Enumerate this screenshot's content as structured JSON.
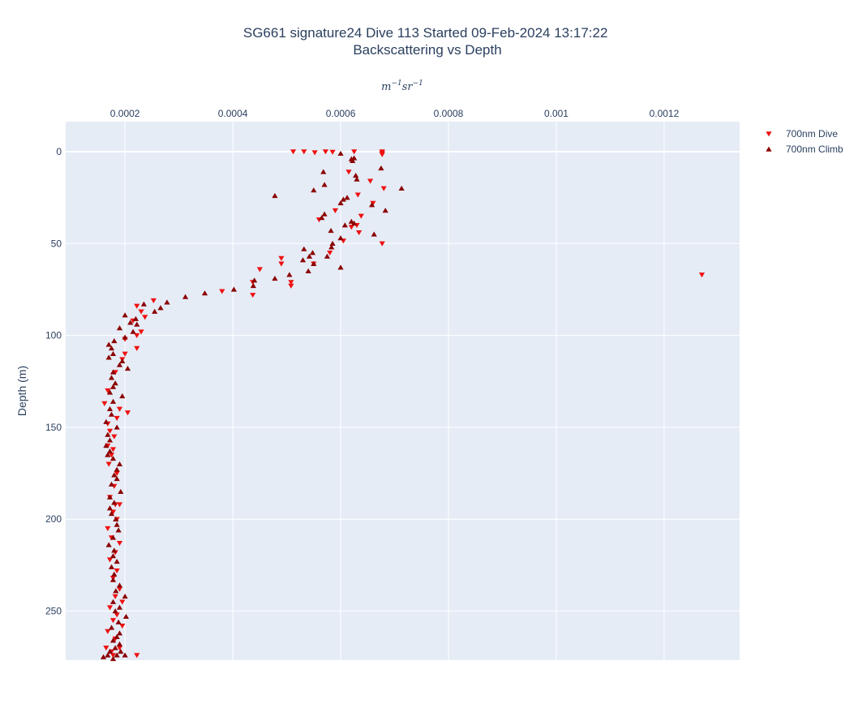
{
  "chart_data": {
    "type": "scatter",
    "title_line1": "SG661 signature24 Dive 113 Started 09-Feb-2024 13:17:22",
    "title_line2": "Backscattering vs Depth",
    "xlabel_unit": {
      "base1": "m",
      "exp1": "−1",
      "base2": "sr",
      "exp2": "−1"
    },
    "ylabel": "Depth (m)",
    "xlim": [
      9e-05,
      0.00134
    ],
    "ylim": [
      0,
      293
    ],
    "y_reversed": true,
    "x_axis_side": "top",
    "grid": true,
    "legend_position": "top-right",
    "x_ticks": [
      {
        "value": 0.0002,
        "label": "0.0002"
      },
      {
        "value": 0.0004,
        "label": "0.0004"
      },
      {
        "value": 0.0006,
        "label": "0.0006"
      },
      {
        "value": 0.0008,
        "label": "0.0008"
      },
      {
        "value": 0.001,
        "label": "0.001"
      },
      {
        "value": 0.0012,
        "label": "0.0012"
      }
    ],
    "y_ticks": [
      {
        "value": 0,
        "label": "0"
      },
      {
        "value": 50,
        "label": "50"
      },
      {
        "value": 100,
        "label": "100"
      },
      {
        "value": 150,
        "label": "150"
      },
      {
        "value": 200,
        "label": "200"
      },
      {
        "value": 250,
        "label": "250"
      }
    ],
    "series": [
      {
        "name": "700nm Dive",
        "color": "#ee1111",
        "marker": "triangle-down",
        "points": [
          [
            0.000512,
            0
          ],
          [
            0.000532,
            0
          ],
          [
            0.000552,
            0.5
          ],
          [
            0.000572,
            0
          ],
          [
            0.000585,
            0.2
          ],
          [
            0.000625,
            0
          ],
          [
            0.000677,
            0
          ],
          [
            0.000677,
            0.8
          ],
          [
            0.000677,
            1.5
          ],
          [
            0.000615,
            11
          ],
          [
            0.000655,
            16
          ],
          [
            0.00068,
            20
          ],
          [
            0.000632,
            23.5
          ],
          [
            0.00066,
            28
          ],
          [
            0.00059,
            32
          ],
          [
            0.000638,
            35
          ],
          [
            0.00063,
            40
          ],
          [
            0.00056,
            37
          ],
          [
            0.00062,
            41
          ],
          [
            0.000634,
            44
          ],
          [
            0.000677,
            50
          ],
          [
            0.00058,
            55
          ],
          [
            0.000605,
            48.5
          ],
          [
            0.00049,
            58
          ],
          [
            0.00049,
            61
          ],
          [
            0.00055,
            61
          ],
          [
            0.00045,
            64
          ],
          [
            0.000508,
            71
          ],
          [
            0.000508,
            73
          ],
          [
            0.000437,
            71
          ],
          [
            0.000437,
            78
          ],
          [
            0.00038,
            76
          ],
          [
            0.00127,
            67
          ],
          [
            0.000253,
            81
          ],
          [
            0.000222,
            84
          ],
          [
            0.00023,
            87
          ],
          [
            0.000237,
            90
          ],
          [
            0.00023,
            98
          ],
          [
            0.000215,
            92
          ],
          [
            0.000222,
            100
          ],
          [
            0.000222,
            107
          ],
          [
            0.0002,
            102
          ],
          [
            0.0002,
            110
          ],
          [
            0.000195,
            113
          ],
          [
            0.000182,
            120
          ],
          [
            0.000168,
            130
          ],
          [
            0.000162,
            137
          ],
          [
            0.00019,
            140
          ],
          [
            0.000205,
            142
          ],
          [
            0.000185,
            145
          ],
          [
            0.000168,
            148
          ],
          [
            0.000172,
            152
          ],
          [
            0.00018,
            155
          ],
          [
            0.000168,
            160
          ],
          [
            0.000178,
            162
          ],
          [
            0.000175,
            165
          ],
          [
            0.00017,
            170
          ],
          [
            0.000185,
            175
          ],
          [
            0.00018,
            182
          ],
          [
            0.000172,
            188
          ],
          [
            0.000182,
            192
          ],
          [
            0.00019,
            192
          ],
          [
            0.000178,
            196
          ],
          [
            0.000185,
            200
          ],
          [
            0.000168,
            205
          ],
          [
            0.000175,
            210
          ],
          [
            0.00019,
            213
          ],
          [
            0.000182,
            218
          ],
          [
            0.000172,
            222
          ],
          [
            0.000185,
            228
          ],
          [
            0.000178,
            232
          ],
          [
            0.00019,
            238
          ],
          [
            0.000182,
            242
          ],
          [
            0.000195,
            245
          ],
          [
            0.000172,
            248
          ],
          [
            0.000185,
            252
          ],
          [
            0.000178,
            255
          ],
          [
            0.000195,
            258
          ],
          [
            0.000168,
            261
          ],
          [
            0.000182,
            265
          ],
          [
            0.00019,
            270
          ],
          [
            0.000175,
            272
          ],
          [
            0.000178,
            274
          ],
          [
            0.000222,
            274
          ],
          [
            0.000165,
            270
          ]
        ]
      },
      {
        "name": "700nm Climb",
        "color": "#8b0000",
        "marker": "triangle-up",
        "points": [
          [
            0.0006,
            1
          ],
          [
            0.000675,
            9
          ],
          [
            0.00062,
            4
          ],
          [
            0.000622,
            5
          ],
          [
            0.000625,
            3.5
          ],
          [
            0.000568,
            11
          ],
          [
            0.000628,
            13
          ],
          [
            0.00063,
            15
          ],
          [
            0.00057,
            18
          ],
          [
            0.000713,
            20
          ],
          [
            0.00055,
            21
          ],
          [
            0.000478,
            24
          ],
          [
            0.000612,
            25
          ],
          [
            0.000605,
            26
          ],
          [
            0.0006,
            28
          ],
          [
            0.000658,
            29
          ],
          [
            0.000683,
            32
          ],
          [
            0.00057,
            34
          ],
          [
            0.000565,
            36
          ],
          [
            0.00062,
            38
          ],
          [
            0.000625,
            39
          ],
          [
            0.000608,
            40
          ],
          [
            0.000582,
            43
          ],
          [
            0.000662,
            45
          ],
          [
            0.0006,
            47
          ],
          [
            0.000585,
            50
          ],
          [
            0.000583,
            52
          ],
          [
            0.000532,
            53
          ],
          [
            0.000548,
            55
          ],
          [
            0.000542,
            57
          ],
          [
            0.000575,
            57
          ],
          [
            0.00053,
            59
          ],
          [
            0.00055,
            61
          ],
          [
            0.0006,
            63
          ],
          [
            0.00054,
            65
          ],
          [
            0.000505,
            67
          ],
          [
            0.000478,
            69
          ],
          [
            0.00044,
            70
          ],
          [
            0.000438,
            73
          ],
          [
            0.000402,
            75
          ],
          [
            0.000348,
            77
          ],
          [
            0.000312,
            79
          ],
          [
            0.000278,
            82
          ],
          [
            0.000235,
            83
          ],
          [
            0.000266,
            85
          ],
          [
            0.000255,
            87
          ],
          [
            0.0002,
            89
          ],
          [
            0.00022,
            91
          ],
          [
            0.00021,
            93
          ],
          [
            0.000222,
            94
          ],
          [
            0.00019,
            96
          ],
          [
            0.000215,
            98
          ],
          [
            0.0002,
            101
          ],
          [
            0.00018,
            103
          ],
          [
            0.00017,
            105
          ],
          [
            0.000175,
            107
          ],
          [
            0.000178,
            110
          ],
          [
            0.00017,
            112
          ],
          [
            0.000195,
            114
          ],
          [
            0.00019,
            116
          ],
          [
            0.000205,
            118
          ],
          [
            0.000178,
            120
          ],
          [
            0.000175,
            123
          ],
          [
            0.000182,
            126
          ],
          [
            0.000178,
            128
          ],
          [
            0.000172,
            131
          ],
          [
            0.000195,
            133
          ],
          [
            0.000178,
            136
          ],
          [
            0.000172,
            140
          ],
          [
            0.000175,
            143
          ],
          [
            0.000165,
            147
          ],
          [
            0.000185,
            150
          ],
          [
            0.000168,
            154
          ],
          [
            0.000172,
            157
          ],
          [
            0.000165,
            160
          ],
          [
            0.000172,
            163
          ],
          [
            0.000168,
            165
          ],
          [
            0.000178,
            167
          ],
          [
            0.00019,
            170
          ],
          [
            0.000185,
            173
          ],
          [
            0.00018,
            176
          ],
          [
            0.000185,
            178
          ],
          [
            0.000175,
            181
          ],
          [
            0.000192,
            185
          ],
          [
            0.000172,
            188
          ],
          [
            0.00018,
            191
          ],
          [
            0.000172,
            194
          ],
          [
            0.000175,
            197
          ],
          [
            0.000183,
            200
          ],
          [
            0.000185,
            203
          ],
          [
            0.000188,
            206
          ],
          [
            0.000178,
            210
          ],
          [
            0.00017,
            214
          ],
          [
            0.00018,
            217
          ],
          [
            0.000178,
            220
          ],
          [
            0.000185,
            223
          ],
          [
            0.000175,
            226
          ],
          [
            0.00018,
            230
          ],
          [
            0.000178,
            233
          ],
          [
            0.00019,
            236
          ],
          [
            0.000183,
            239
          ],
          [
            0.0002,
            242
          ],
          [
            0.000178,
            245
          ],
          [
            0.00019,
            248
          ],
          [
            0.000182,
            250
          ],
          [
            0.000202,
            253
          ],
          [
            0.000188,
            256
          ],
          [
            0.000175,
            259
          ],
          [
            0.00019,
            262
          ],
          [
            0.000185,
            264
          ],
          [
            0.000178,
            266
          ],
          [
            0.00019,
            268
          ],
          [
            0.000182,
            270
          ],
          [
            0.000172,
            272
          ],
          [
            0.000192,
            272
          ],
          [
            0.000168,
            274
          ],
          [
            0.000185,
            274
          ],
          [
            0.0002,
            274
          ],
          [
            0.00016,
            275
          ],
          [
            0.000178,
            276
          ]
        ]
      }
    ]
  }
}
